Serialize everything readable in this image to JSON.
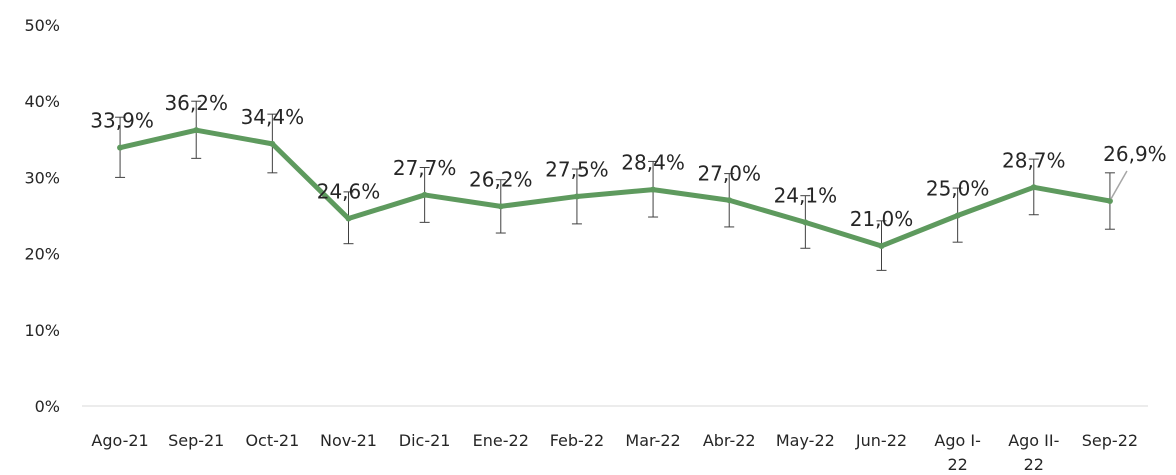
{
  "chart_data": {
    "type": "line",
    "categories": [
      "Ago-21",
      "Sep-21",
      "Oct-21",
      "Nov-21",
      "Dic-21",
      "Ene-22",
      "Feb-22",
      "Mar-22",
      "Abr-22",
      "May-22",
      "Jun-22",
      "Ago I-22",
      "Ago II-22",
      "Sep-22"
    ],
    "category_lines": [
      [
        "Ago-21"
      ],
      [
        "Sep-21"
      ],
      [
        "Oct-21"
      ],
      [
        "Nov-21"
      ],
      [
        "Dic-21"
      ],
      [
        "Ene-22"
      ],
      [
        "Feb-22"
      ],
      [
        "Mar-22"
      ],
      [
        "Abr-22"
      ],
      [
        "May-22"
      ],
      [
        "Jun-22"
      ],
      [
        "Ago I-",
        "22"
      ],
      [
        "Ago II-",
        "22"
      ],
      [
        "Sep-22"
      ]
    ],
    "series": [
      {
        "values": [
          33.9,
          36.2,
          34.4,
          24.6,
          27.7,
          26.2,
          27.5,
          28.4,
          27.0,
          24.1,
          21.0,
          25.0,
          28.7,
          26.9
        ],
        "labels": [
          "33,9%",
          "36,2%",
          "34,4%",
          "24,6%",
          "27,7%",
          "26,2%",
          "27,5%",
          "28,4%",
          "27,0%",
          "24,1%",
          "21,0%",
          "25,0%",
          "28,7%",
          "26,9%"
        ],
        "error_low": [
          30.0,
          32.5,
          30.6,
          21.3,
          24.1,
          22.7,
          23.9,
          24.8,
          23.5,
          20.7,
          17.8,
          21.5,
          25.1,
          23.2
        ],
        "error_high": [
          37.9,
          40.0,
          38.3,
          28.1,
          31.3,
          29.7,
          31.1,
          32.1,
          30.5,
          27.6,
          24.3,
          28.6,
          32.4,
          30.6
        ],
        "color": "#5E9A5E"
      }
    ],
    "y_ticks": [
      0,
      10,
      20,
      30,
      40,
      50
    ],
    "y_tick_labels": [
      "0%",
      "10%",
      "20%",
      "30%",
      "40%",
      "50%"
    ],
    "ylim": [
      0,
      50
    ],
    "grid": false,
    "axis_color": "#D9D9D9",
    "error_bar_color": "#404040",
    "leader_line_color": "#A6A6A6"
  }
}
